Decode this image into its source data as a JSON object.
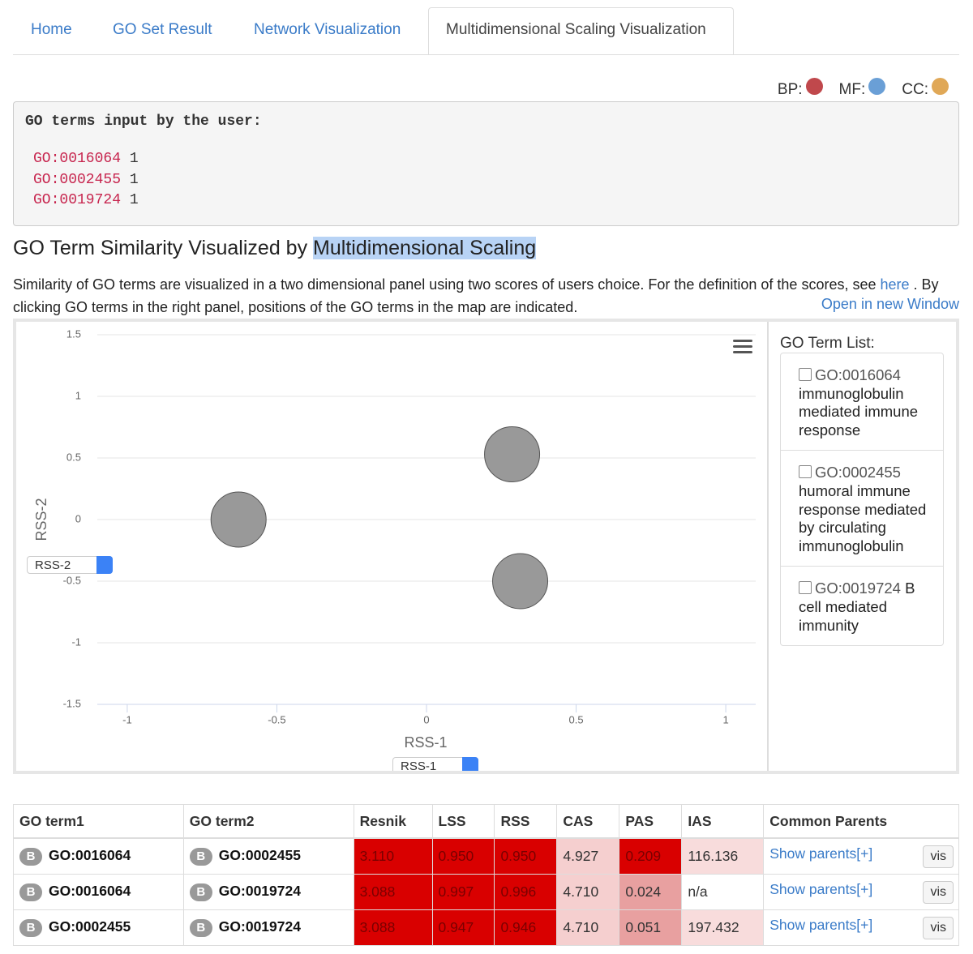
{
  "tabs": [
    "Home",
    "GO Set Result",
    "Network Visualization",
    "Multidimensional Scaling Visualization"
  ],
  "legend": [
    {
      "label": "BP:",
      "color": "#c0484c"
    },
    {
      "label": "MF:",
      "color": "#6a9fd6"
    },
    {
      "label": "CC:",
      "color": "#e0a857"
    }
  ],
  "input_box": {
    "title": "GO terms input by the user:",
    "lines": [
      {
        "term": "GO:0016064",
        "count": "1"
      },
      {
        "term": "GO:0002455",
        "count": "1"
      },
      {
        "term": "GO:0019724",
        "count": "1"
      }
    ]
  },
  "heading": {
    "text": "GO Term Similarity Visualized by ",
    "highlight": "Multidimensional Scaling"
  },
  "description": {
    "before": "Similarity of GO terms are visualized in a two dimensional panel using two scores of users choice. For the definition of the scores, see ",
    "link": "here",
    "after": " . By clicking GO terms in the right panel, positions of the GO terms in the map are indicated.",
    "open_link": "Open in new Window"
  },
  "chart_data": {
    "type": "scatter",
    "x": [
      -0.628,
      0.286,
      0.313
    ],
    "values": [
      0,
      0.53,
      -0.5
    ],
    "color": "#999999",
    "xlim": [
      -1.1,
      1.1
    ],
    "ylim": [
      -1.5,
      1.5
    ],
    "xticks": [
      -1,
      -0.5,
      0,
      0.5,
      1
    ],
    "yticks": [
      -1.5,
      -1,
      -0.5,
      0,
      0.5,
      1,
      1.5
    ],
    "xlabel": "RSS-1",
    "ylabel": "RSS-2",
    "x_select": "RSS-1",
    "y_select": "RSS-2",
    "grid": true
  },
  "term_list": {
    "title": "GO Term List:",
    "items": [
      {
        "id": "GO:0016064",
        "name": "immunoglobulin mediated immune response"
      },
      {
        "id": "GO:0002455",
        "name": "humoral immune response mediated by circulating immunoglobulin"
      },
      {
        "id": "GO:0019724",
        "name": "B cell mediated immunity"
      }
    ]
  },
  "table": {
    "header": [
      "GO term1",
      "GO term2",
      "Resnik",
      "LSS",
      "RSS",
      "CAS",
      "PAS",
      "IAS",
      "Common Parents"
    ],
    "rows": [
      {
        "badge1": "B",
        "term1": "GO:0016064",
        "badge2": "B",
        "term2": "GO:0002455",
        "scores": [
          "3.110",
          "0.950",
          "0.950",
          "4.927",
          "0.209",
          "116.136"
        ],
        "colors": [
          "#d90000",
          "#d90000",
          "#d90000",
          "#f5cfcf",
          "#d90000",
          "#f8dcdc"
        ],
        "link": "Show parents[+]",
        "button": "vis"
      },
      {
        "badge1": "B",
        "term1": "GO:0016064",
        "badge2": "B",
        "term2": "GO:0019724",
        "scores": [
          "3.088",
          "0.997",
          "0.996",
          "4.710",
          "0.024",
          "n/a"
        ],
        "colors": [
          "#d90000",
          "#d90000",
          "#d90000",
          "#f5cfcf",
          "#e8a0a0",
          "#ffffff"
        ],
        "link": "Show parents[+]",
        "button": "vis"
      },
      {
        "badge1": "B",
        "term1": "GO:0002455",
        "badge2": "B",
        "term2": "GO:0019724",
        "scores": [
          "3.088",
          "0.947",
          "0.946",
          "4.710",
          "0.051",
          "197.432"
        ],
        "colors": [
          "#d90000",
          "#d90000",
          "#d90000",
          "#f5cfcf",
          "#e8a0a0",
          "#f8dcdc"
        ],
        "link": "Show parents[+]",
        "button": "vis"
      }
    ]
  }
}
